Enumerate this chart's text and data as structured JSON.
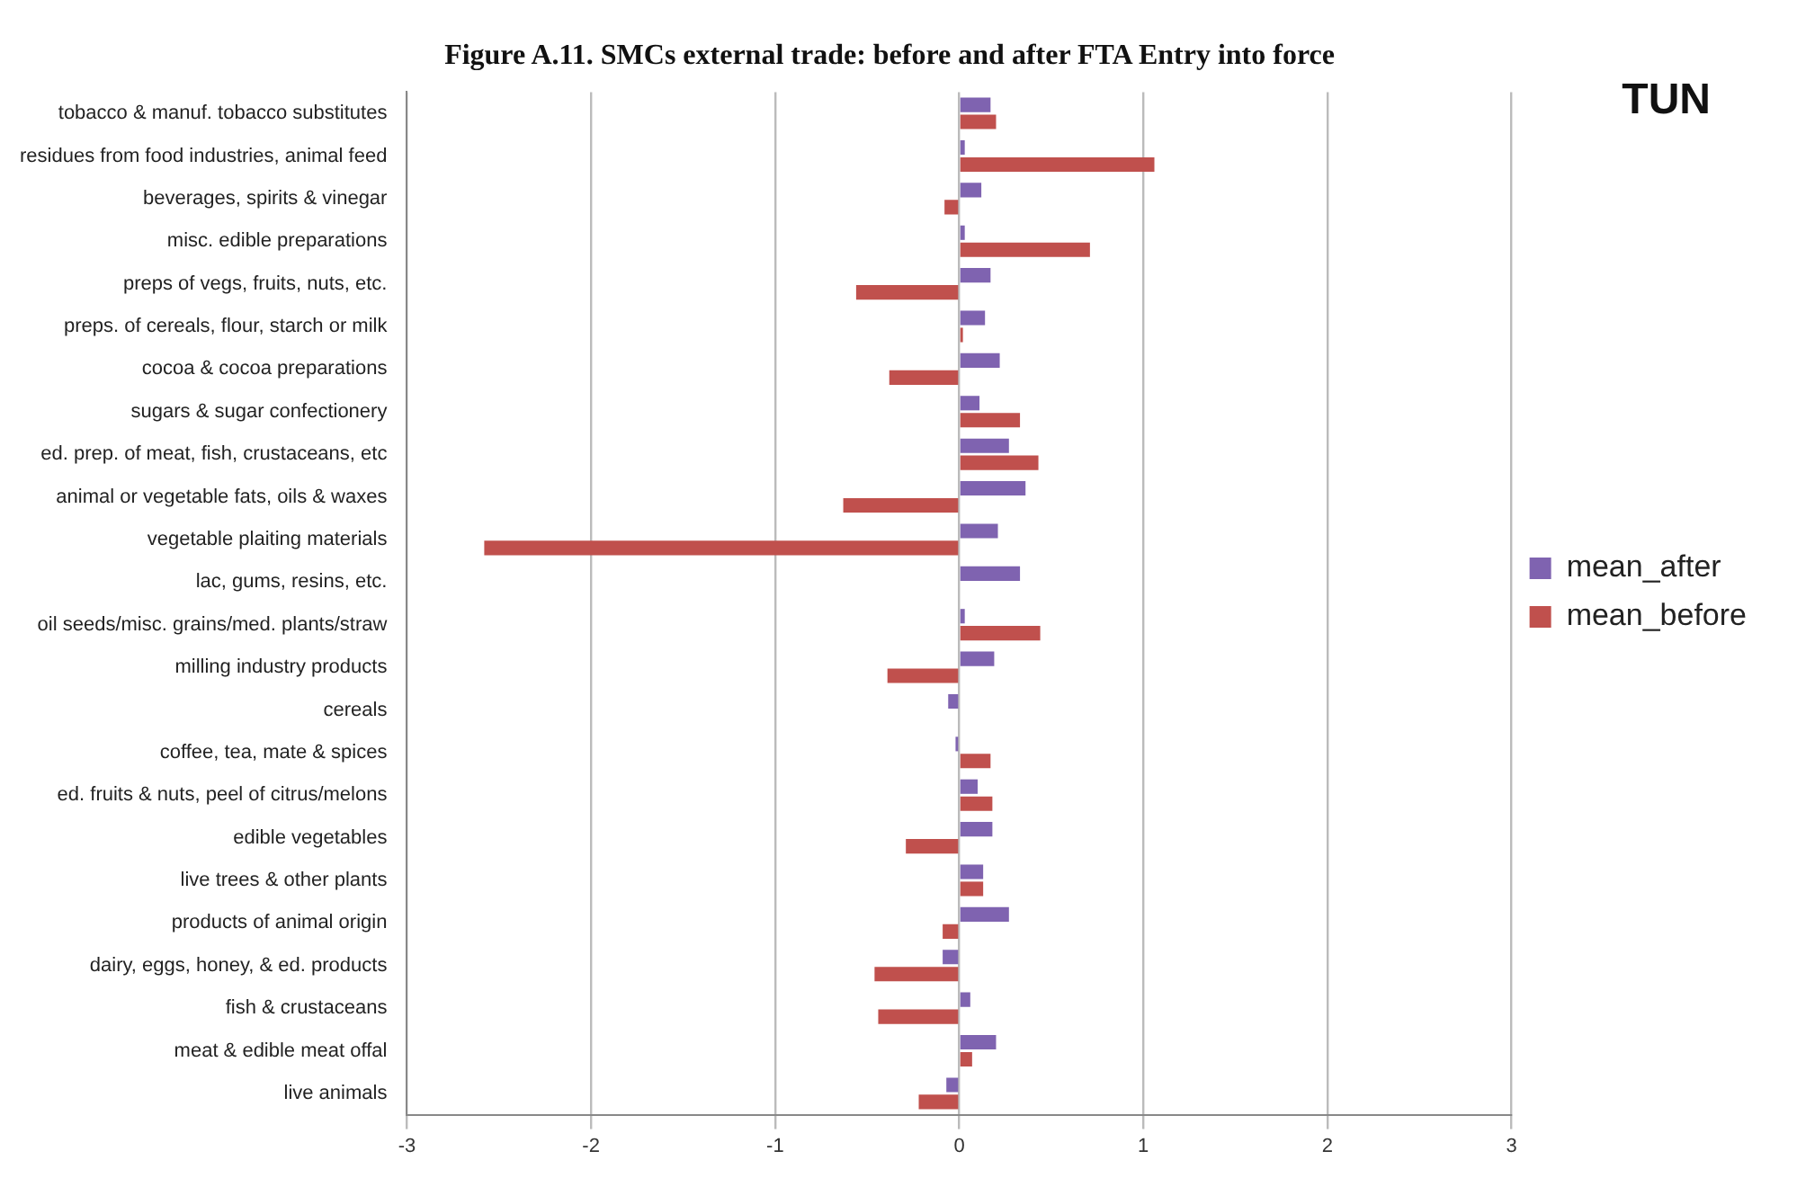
{
  "chart_data": {
    "type": "bar",
    "orientation": "horizontal",
    "title": "Figure A.11. SMCs external trade: before and after FTA Entry into force",
    "annotations": [
      "TUN"
    ],
    "categories": [
      "tobacco & manuf. tobacco substitutes",
      "residues from food industries, animal feed",
      "beverages, spirits & vinegar",
      "misc. edible preparations",
      "preps of vegs, fruits, nuts, etc.",
      "preps. of cereals, flour, starch or milk",
      "cocoa & cocoa preparations",
      "sugars & sugar confectionery",
      "ed. prep. of meat, fish, crustaceans, etc",
      "animal or vegetable fats, oils & waxes",
      "vegetable plaiting materials",
      "lac, gums, resins, etc.",
      "oil seeds/misc. grains/med. plants/straw",
      "milling industry products",
      "cereals",
      "coffee, tea, mate & spices",
      "ed. fruits & nuts, peel of citrus/melons",
      "edible vegetables",
      "live trees & other plants",
      "products of animal origin",
      "dairy, eggs, honey, & ed. products",
      "fish & crustaceans",
      "meat & edible meat offal",
      "live animals"
    ],
    "series": [
      {
        "name": "mean_after",
        "color": "#7f63b0",
        "values": [
          0.17,
          0.03,
          0.12,
          0.03,
          0.17,
          0.14,
          0.22,
          0.11,
          0.27,
          0.36,
          0.21,
          0.33,
          0.03,
          0.19,
          -0.06,
          -0.02,
          0.1,
          0.18,
          0.13,
          0.27,
          -0.09,
          0.06,
          0.2,
          -0.07
        ]
      },
      {
        "name": "mean_before",
        "color": "#c0504d",
        "values": [
          0.2,
          1.06,
          -0.08,
          0.71,
          -0.56,
          0.02,
          -0.38,
          0.33,
          0.43,
          -0.63,
          -2.58,
          0,
          0.44,
          -0.39,
          0,
          0.17,
          0.18,
          -0.29,
          0.13,
          -0.09,
          -0.46,
          -0.44,
          0.07,
          -0.22
        ]
      }
    ],
    "xlim": [
      -3,
      3
    ],
    "xticks": [
      -3,
      -2,
      -1,
      0,
      1,
      2,
      3
    ],
    "grid": "x",
    "legend": "right"
  }
}
